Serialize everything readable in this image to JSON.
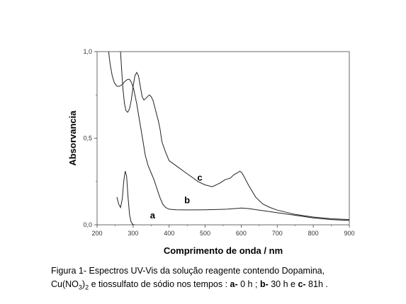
{
  "chart_data": {
    "type": "line",
    "xlabel": "Comprimento de onda / nm",
    "ylabel": "Absorvancia",
    "xlim": [
      200,
      900
    ],
    "ylim": [
      0.0,
      1.0
    ],
    "x_ticks": [
      "200",
      "300",
      "400",
      "500",
      "600",
      "700",
      "800",
      "900"
    ],
    "y_ticks": [
      "0,0",
      "0,5",
      "1,0"
    ],
    "grid": false,
    "series": [
      {
        "name": "a",
        "x": [
          255,
          260,
          265,
          270,
          274,
          278,
          282,
          286,
          290,
          294,
          298,
          302,
          305
        ],
        "y": [
          0.16,
          0.12,
          0.1,
          0.15,
          0.25,
          0.31,
          0.28,
          0.16,
          0.06,
          0.02,
          0.005,
          0.0,
          0.0
        ]
      },
      {
        "name": "b",
        "x": [
          232,
          236,
          242,
          248,
          255,
          262,
          270,
          278,
          285,
          290,
          296,
          302,
          310,
          318,
          326,
          334,
          342,
          350,
          358,
          366,
          374,
          382,
          390,
          400,
          410,
          420,
          440,
          470,
          500,
          530,
          560,
          590,
          600,
          620,
          650,
          700,
          750,
          800,
          850,
          900
        ],
        "y": [
          1.0,
          0.93,
          0.86,
          0.82,
          0.8,
          0.8,
          0.81,
          0.83,
          0.84,
          0.84,
          0.82,
          0.78,
          0.7,
          0.6,
          0.5,
          0.4,
          0.34,
          0.3,
          0.26,
          0.21,
          0.16,
          0.12,
          0.1,
          0.09,
          0.088,
          0.087,
          0.086,
          0.086,
          0.087,
          0.088,
          0.09,
          0.095,
          0.097,
          0.094,
          0.085,
          0.07,
          0.055,
          0.04,
          0.03,
          0.025
        ]
      },
      {
        "name": "c",
        "x": [
          265,
          268,
          272,
          276,
          280,
          285,
          290,
          295,
          300,
          305,
          310,
          315,
          320,
          325,
          330,
          335,
          340,
          345,
          350,
          355,
          360,
          365,
          370,
          375,
          380,
          390,
          400,
          420,
          440,
          460,
          480,
          500,
          520,
          540,
          555,
          570,
          580,
          590,
          596,
          602,
          610,
          620,
          640,
          660,
          680,
          700,
          750,
          800,
          850,
          900
        ],
        "y": [
          1.0,
          0.9,
          0.78,
          0.7,
          0.66,
          0.65,
          0.67,
          0.72,
          0.8,
          0.86,
          0.88,
          0.86,
          0.8,
          0.74,
          0.72,
          0.73,
          0.74,
          0.75,
          0.74,
          0.72,
          0.68,
          0.64,
          0.6,
          0.55,
          0.48,
          0.42,
          0.37,
          0.34,
          0.31,
          0.28,
          0.25,
          0.23,
          0.22,
          0.24,
          0.26,
          0.27,
          0.29,
          0.3,
          0.31,
          0.3,
          0.27,
          0.23,
          0.16,
          0.12,
          0.1,
          0.085,
          0.06,
          0.045,
          0.035,
          0.03
        ]
      }
    ]
  },
  "caption": {
    "line1": "Figura 1- Espectros UV-Vis da solução reagente contendo Dopamina,",
    "line2_prefix": "Cu(NO",
    "line2_sub3": "3",
    "line2_close": ")",
    "line2_sub2": "2",
    "line2_mid": " e tiossulfato de sódio nos tempos : ",
    "a_label": "a-",
    "a_text": " 0 h ; ",
    "b_label": "b-",
    "b_text": " 30 h e ",
    "c_label": "c-",
    "c_text": " 81h ."
  }
}
